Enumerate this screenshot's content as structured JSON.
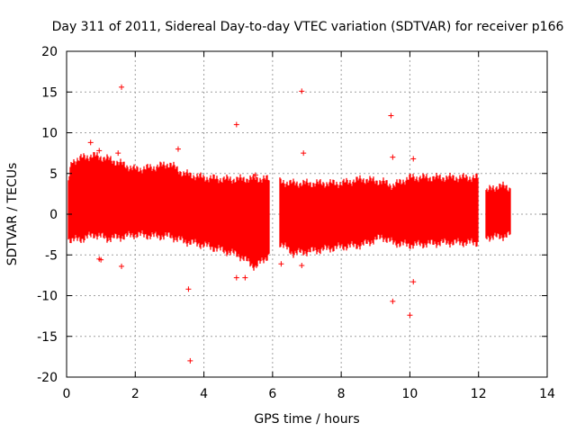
{
  "chart_data": {
    "type": "scatter",
    "title": "Day 311 of 2011, Sidereal Day-to-day VTEC variation (SDTVAR) for receiver p166",
    "xlabel": "GPS time / hours",
    "ylabel": "SDTVAR / TECUs",
    "xlim": [
      0,
      14
    ],
    "ylim": [
      -20,
      20
    ],
    "xticks": [
      0,
      2,
      4,
      6,
      8,
      10,
      12,
      14
    ],
    "yticks": [
      -20,
      -15,
      -10,
      -5,
      0,
      5,
      10,
      15,
      20
    ],
    "grid": true,
    "marker": "+",
    "color": "#ff0000",
    "series": [
      {
        "name": "SDTVAR",
        "envelope": [
          {
            "x": 0.05,
            "low": -3.0,
            "high": 4.0
          },
          {
            "x": 0.15,
            "low": -3.2,
            "high": 6.5
          },
          {
            "x": 0.5,
            "low": -3.0,
            "high": 7.0
          },
          {
            "x": 0.8,
            "low": -2.5,
            "high": 7.2
          },
          {
            "x": 1.2,
            "low": -3.0,
            "high": 6.8
          },
          {
            "x": 1.6,
            "low": -2.8,
            "high": 6.2
          },
          {
            "x": 2.0,
            "low": -2.5,
            "high": 5.5
          },
          {
            "x": 2.6,
            "low": -2.7,
            "high": 5.8
          },
          {
            "x": 3.0,
            "low": -2.7,
            "high": 6.2
          },
          {
            "x": 3.4,
            "low": -3.3,
            "high": 5.0
          },
          {
            "x": 4.0,
            "low": -3.8,
            "high": 4.5
          },
          {
            "x": 4.6,
            "low": -4.5,
            "high": 4.3
          },
          {
            "x": 5.0,
            "low": -5.0,
            "high": 4.3
          },
          {
            "x": 5.5,
            "low": -6.5,
            "high": 4.4
          },
          {
            "x": 5.9,
            "low": -5.0,
            "high": 4.3
          },
          {
            "x": 6.1,
            "low": null,
            "high": null
          },
          {
            "x": 6.2,
            "low": -3.5,
            "high": 4.0
          },
          {
            "x": 6.6,
            "low": -4.8,
            "high": 3.8
          },
          {
            "x": 7.2,
            "low": -4.5,
            "high": 3.8
          },
          {
            "x": 8.0,
            "low": -4.0,
            "high": 3.8
          },
          {
            "x": 8.6,
            "low": -3.8,
            "high": 4.3
          },
          {
            "x": 9.2,
            "low": -2.8,
            "high": 4.0
          },
          {
            "x": 9.5,
            "low": -3.5,
            "high": 3.5
          },
          {
            "x": 10.0,
            "low": -3.8,
            "high": 4.5
          },
          {
            "x": 11.0,
            "low": -3.5,
            "high": 4.5
          },
          {
            "x": 12.0,
            "low": -3.5,
            "high": 4.5
          },
          {
            "x": 12.05,
            "low": null,
            "high": null
          },
          {
            "x": 12.2,
            "low": -2.8,
            "high": 2.8
          },
          {
            "x": 12.6,
            "low": -2.8,
            "high": 3.5
          },
          {
            "x": 12.95,
            "low": -2.5,
            "high": 3.2
          }
        ],
        "outliers": [
          {
            "x": 1.6,
            "y": 15.6
          },
          {
            "x": 1.6,
            "y": -6.4
          },
          {
            "x": 6.85,
            "y": 15.1
          },
          {
            "x": 4.95,
            "y": 11.0
          },
          {
            "x": 9.45,
            "y": 12.1
          },
          {
            "x": 3.6,
            "y": -18.0
          },
          {
            "x": 10.0,
            "y": -12.4
          },
          {
            "x": 9.5,
            "y": -10.7
          },
          {
            "x": 10.1,
            "y": -8.3
          },
          {
            "x": 3.55,
            "y": -9.2
          },
          {
            "x": 0.7,
            "y": 8.8
          },
          {
            "x": 3.25,
            "y": 8.0
          },
          {
            "x": 6.9,
            "y": 7.5
          },
          {
            "x": 6.85,
            "y": -6.3
          },
          {
            "x": 5.2,
            "y": -7.8
          },
          {
            "x": 4.95,
            "y": -7.8
          },
          {
            "x": 5.5,
            "y": 4.8
          },
          {
            "x": 0.95,
            "y": -5.5
          },
          {
            "x": 1.0,
            "y": -5.6
          },
          {
            "x": 6.25,
            "y": -6.1
          },
          {
            "x": 10.1,
            "y": 6.8
          },
          {
            "x": 9.5,
            "y": 7.0
          },
          {
            "x": 1.5,
            "y": 7.5
          },
          {
            "x": 0.95,
            "y": 7.8
          }
        ]
      }
    ]
  }
}
